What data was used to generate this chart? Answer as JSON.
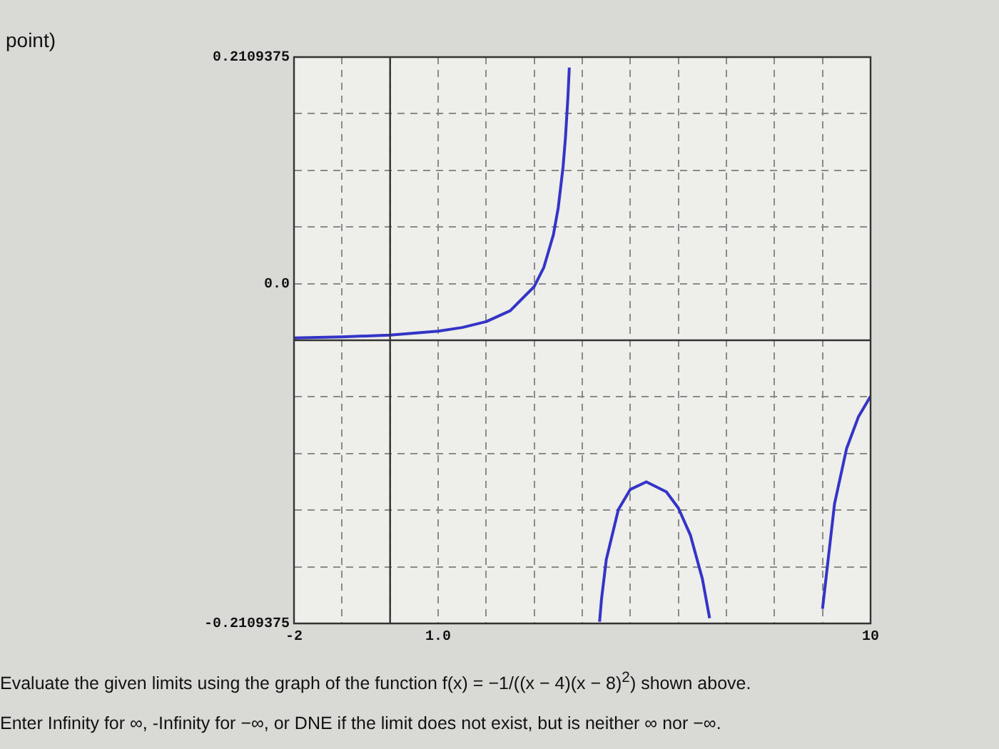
{
  "chart_data": {
    "type": "line",
    "annotations": [
      "point)",
      "Evaluate the given limits using the graph of the function f(x) = −1/((x − 4)(x − 8)$^{2}$) shown above.",
      "Enter Infinity for ∞, -Infinity for −∞, or DNE if the limit does not exist, but is neither ∞ nor −∞."
    ],
    "series": [
      {
        "color": "#3434c8",
        "x": [
          -2,
          -1,
          0,
          1,
          1.5,
          2,
          2.5,
          3,
          3.2,
          3.4,
          3.5,
          3.6,
          3.65,
          3.7,
          3.73,
          4,
          4.36,
          4.4,
          4.5,
          4.75,
          5,
          5.333,
          5.75,
          6,
          6.25,
          6.5,
          6.65,
          8,
          9,
          9.25,
          9.5,
          9.75,
          10
        ],
        "values": [
          0.0017,
          0.0025,
          0.0039,
          0.0068,
          0.0095,
          0.0139,
          0.022,
          0.04,
          0.0543,
          0.0788,
          0.0988,
          0.1291,
          0.151,
          0.1803,
          0.2031,
          null,
          -0.2097,
          -0.1929,
          -0.1633,
          -0.1262,
          -0.1111,
          -0.1055,
          -0.1129,
          -0.125,
          -0.1451,
          -0.1778,
          -0.207,
          null,
          -0.2,
          -0.1219,
          -0.0808,
          -0.0568,
          -0.0417
        ]
      }
    ],
    "xlim": [
      -2,
      10
    ],
    "xticks": [
      {
        "value": -2,
        "label": "-2"
      },
      {
        "value": -1,
        "label": null
      },
      {
        "value": 0,
        "label": null
      },
      {
        "value": 1,
        "label": "1.0"
      },
      {
        "value": 2,
        "label": null
      },
      {
        "value": 3,
        "label": null
      },
      {
        "value": 4,
        "label": null
      },
      {
        "value": 5,
        "label": null
      },
      {
        "value": 6,
        "label": null
      },
      {
        "value": 7,
        "label": null
      },
      {
        "value": 8,
        "label": null
      },
      {
        "value": 9,
        "label": null
      },
      {
        "value": 10,
        "label": "10"
      }
    ],
    "ylim": [
      -0.2109375,
      0.2109375
    ],
    "yticks": [
      {
        "value": -0.2109375,
        "label": "-0.2109375"
      },
      {
        "value": -0.16875,
        "label": null
      },
      {
        "value": -0.1265625,
        "label": null
      },
      {
        "value": -0.084375,
        "label": null
      },
      {
        "value": -0.0421875,
        "label": null
      },
      {
        "value": 0,
        "label": null
      },
      {
        "value": 0.0421875,
        "label": "0.0"
      },
      {
        "value": 0.084375,
        "label": null
      },
      {
        "value": 0.1265625,
        "label": null
      },
      {
        "value": 0.16875,
        "label": null
      },
      {
        "value": 0.2109375,
        "label": "0.2109375"
      }
    ],
    "grid": true,
    "marker": "none",
    "line_style": "solid",
    "legend": false
  }
}
